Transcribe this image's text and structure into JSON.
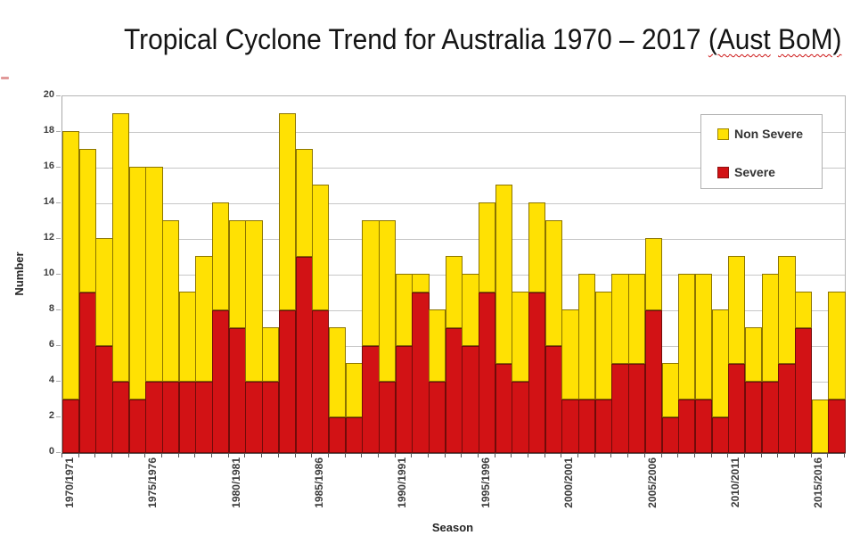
{
  "title": {
    "prefix": "Tropical Cyclone Trend for Australia 1970 – 2017 ",
    "annot1": "(Aust",
    "annot2": "BoM)",
    "squiggle_color": "#cc1111"
  },
  "legend": {
    "items": [
      {
        "label": "Non Severe",
        "color": "#ffe103"
      },
      {
        "label": "Severe",
        "color": "#d21215"
      }
    ]
  },
  "axes": {
    "ylabel": "Number",
    "xlabel": "Season",
    "y_ticks": [
      "0",
      "2",
      "4",
      "6",
      "8",
      "10",
      "12",
      "14",
      "16",
      "18",
      "20"
    ],
    "x_ticks_shown": [
      "1970/1971",
      "1975/1976",
      "1980/1981",
      "1985/1986",
      "1990/1991",
      "1995/1996",
      "2000/2001",
      "2005/2006",
      "2010/2011",
      "2015/2016"
    ]
  },
  "chart_data": {
    "type": "bar",
    "stacked": true,
    "title": "Tropical Cyclone Trend for Australia 1970 – 2017 (Aust BoM)",
    "xlabel": "Season",
    "ylabel": "Number",
    "ylim": [
      0,
      20
    ],
    "ytick_step": 2,
    "grid": "horizontal",
    "legend_position": "top-right-inside",
    "xtick_label_every": 5,
    "categories": [
      "1970/1971",
      "1971/1972",
      "1972/1973",
      "1973/1974",
      "1974/1975",
      "1975/1976",
      "1976/1977",
      "1977/1978",
      "1978/1979",
      "1979/1980",
      "1980/1981",
      "1981/1982",
      "1982/1983",
      "1983/1984",
      "1984/1985",
      "1985/1986",
      "1986/1987",
      "1987/1988",
      "1988/1989",
      "1989/1990",
      "1990/1991",
      "1991/1992",
      "1992/1993",
      "1993/1994",
      "1994/1995",
      "1995/1996",
      "1996/1997",
      "1997/1998",
      "1998/1999",
      "1999/2000",
      "2000/2001",
      "2001/2002",
      "2002/2003",
      "2003/2004",
      "2004/2005",
      "2005/2006",
      "2006/2007",
      "2007/2008",
      "2008/2009",
      "2009/2010",
      "2010/2011",
      "2011/2012",
      "2012/2013",
      "2013/2014",
      "2014/2015",
      "2015/2016",
      "2016/2017"
    ],
    "series": [
      {
        "name": "Severe",
        "color": "#d21215",
        "values": [
          3,
          9,
          6,
          4,
          3,
          4,
          4,
          4,
          4,
          8,
          7,
          4,
          4,
          8,
          11,
          8,
          2,
          2,
          6,
          4,
          6,
          9,
          4,
          7,
          6,
          9,
          5,
          4,
          9,
          6,
          3,
          3,
          3,
          5,
          5,
          8,
          2,
          3,
          3,
          2,
          5,
          4,
          4,
          5,
          7,
          0,
          3
        ]
      },
      {
        "name": "Non Severe",
        "color": "#ffe103",
        "values": [
          15,
          8,
          6,
          15,
          13,
          12,
          9,
          5,
          7,
          6,
          6,
          9,
          3,
          11,
          6,
          7,
          5,
          3,
          7,
          9,
          4,
          1,
          4,
          4,
          4,
          5,
          10,
          5,
          5,
          7,
          5,
          7,
          6,
          5,
          5,
          4,
          3,
          7,
          7,
          6,
          6,
          3,
          6,
          6,
          2,
          3,
          6
        ]
      }
    ],
    "totals": [
      18,
      17,
      12,
      19,
      16,
      16,
      13,
      9,
      11,
      14,
      13,
      13,
      7,
      19,
      17,
      15,
      7,
      5,
      13,
      13,
      10,
      10,
      8,
      11,
      10,
      14,
      15,
      9,
      14,
      13,
      8,
      10,
      9,
      10,
      10,
      12,
      5,
      10,
      10,
      8,
      11,
      7,
      10,
      11,
      9,
      3,
      9
    ]
  }
}
